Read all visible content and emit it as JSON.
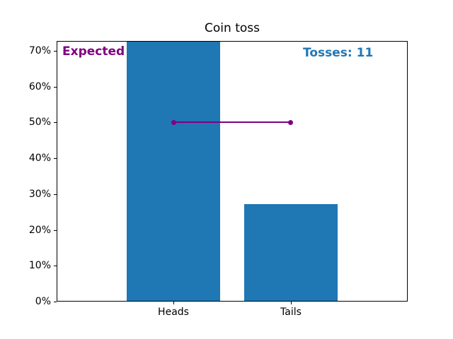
{
  "chart_data": {
    "type": "bar",
    "title": "Coin toss",
    "categories": [
      "Heads",
      "Tails"
    ],
    "values": [
      72.727,
      27.273
    ],
    "bar_color": "#1f77b4",
    "xlabel": "",
    "ylabel": "",
    "ylim": [
      0,
      72.727
    ],
    "yticks": [
      0,
      10,
      20,
      30,
      40,
      50,
      60,
      70
    ],
    "ytick_labels": [
      "0%",
      "10%",
      "20%",
      "30%",
      "40%",
      "50%",
      "60%",
      "70%"
    ],
    "grid": false,
    "legend": null,
    "expected_line": {
      "value": 50,
      "from_category_index": 0,
      "to_category_index": 1,
      "color": "#800080",
      "marker": "circle"
    },
    "annotations": [
      {
        "text": "Expected values",
        "color": "#800080",
        "bold": true,
        "position": "top-left"
      },
      {
        "text": "Tosses: 11",
        "color": "#1f77b4",
        "bold": true,
        "position": "top-right"
      }
    ]
  }
}
